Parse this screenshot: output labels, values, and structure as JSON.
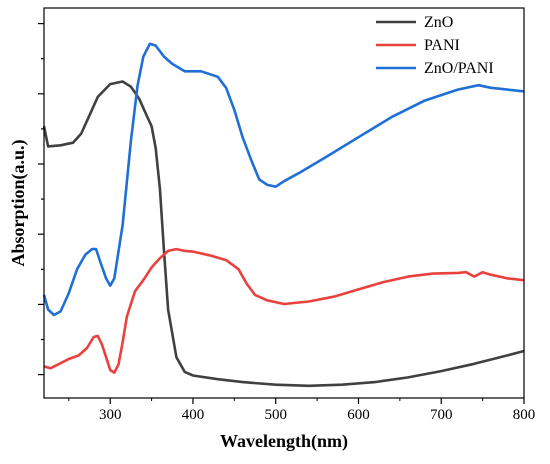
{
  "chart_data": {
    "type": "line",
    "title": "",
    "xlabel": "Wavelength(nm)",
    "ylabel": "Absorption(a.u.)",
    "xlim": [
      220,
      800
    ],
    "x_ticks": [
      300,
      400,
      500,
      600,
      700,
      800
    ],
    "y_ticks_labeled": false,
    "ylim": [
      0,
      1
    ],
    "grid": false,
    "legend_position": "top-right",
    "series": [
      {
        "name": "ZnO",
        "color": "#404040",
        "points": [
          [
            220,
            0.72
          ],
          [
            225,
            0.665
          ],
          [
            240,
            0.668
          ],
          [
            255,
            0.675
          ],
          [
            265,
            0.7
          ],
          [
            275,
            0.75
          ],
          [
            285,
            0.8
          ],
          [
            300,
            0.835
          ],
          [
            315,
            0.842
          ],
          [
            325,
            0.828
          ],
          [
            335,
            0.795
          ],
          [
            345,
            0.745
          ],
          [
            350,
            0.72
          ],
          [
            355,
            0.66
          ],
          [
            360,
            0.55
          ],
          [
            365,
            0.38
          ],
          [
            370,
            0.22
          ],
          [
            380,
            0.09
          ],
          [
            390,
            0.05
          ],
          [
            400,
            0.04
          ],
          [
            430,
            0.03
          ],
          [
            460,
            0.022
          ],
          [
            500,
            0.015
          ],
          [
            540,
            0.012
          ],
          [
            580,
            0.015
          ],
          [
            620,
            0.022
          ],
          [
            660,
            0.035
          ],
          [
            700,
            0.052
          ],
          [
            740,
            0.072
          ],
          [
            780,
            0.095
          ],
          [
            800,
            0.107
          ]
        ]
      },
      {
        "name": "PANI",
        "color": "#e8413e",
        "points": [
          [
            220,
            0.065
          ],
          [
            228,
            0.06
          ],
          [
            235,
            0.068
          ],
          [
            250,
            0.085
          ],
          [
            262,
            0.095
          ],
          [
            272,
            0.115
          ],
          [
            280,
            0.145
          ],
          [
            285,
            0.148
          ],
          [
            290,
            0.125
          ],
          [
            295,
            0.09
          ],
          [
            300,
            0.055
          ],
          [
            305,
            0.048
          ],
          [
            310,
            0.07
          ],
          [
            315,
            0.13
          ],
          [
            320,
            0.2
          ],
          [
            330,
            0.27
          ],
          [
            340,
            0.3
          ],
          [
            350,
            0.335
          ],
          [
            360,
            0.36
          ],
          [
            370,
            0.38
          ],
          [
            380,
            0.385
          ],
          [
            390,
            0.38
          ],
          [
            400,
            0.378
          ],
          [
            420,
            0.368
          ],
          [
            440,
            0.355
          ],
          [
            455,
            0.33
          ],
          [
            465,
            0.29
          ],
          [
            475,
            0.26
          ],
          [
            490,
            0.245
          ],
          [
            510,
            0.235
          ],
          [
            540,
            0.242
          ],
          [
            570,
            0.255
          ],
          [
            600,
            0.275
          ],
          [
            630,
            0.295
          ],
          [
            660,
            0.31
          ],
          [
            690,
            0.318
          ],
          [
            720,
            0.32
          ],
          [
            730,
            0.322
          ],
          [
            740,
            0.31
          ],
          [
            750,
            0.322
          ],
          [
            760,
            0.315
          ],
          [
            780,
            0.305
          ],
          [
            800,
            0.3
          ]
        ]
      },
      {
        "name": "ZnO/PANI",
        "color": "#1f6fd6",
        "points": [
          [
            220,
            0.26
          ],
          [
            225,
            0.22
          ],
          [
            232,
            0.205
          ],
          [
            240,
            0.215
          ],
          [
            250,
            0.265
          ],
          [
            260,
            0.33
          ],
          [
            270,
            0.37
          ],
          [
            278,
            0.385
          ],
          [
            283,
            0.385
          ],
          [
            288,
            0.35
          ],
          [
            295,
            0.305
          ],
          [
            300,
            0.285
          ],
          [
            305,
            0.305
          ],
          [
            315,
            0.45
          ],
          [
            325,
            0.68
          ],
          [
            333,
            0.83
          ],
          [
            340,
            0.91
          ],
          [
            348,
            0.945
          ],
          [
            355,
            0.94
          ],
          [
            365,
            0.91
          ],
          [
            375,
            0.89
          ],
          [
            390,
            0.87
          ],
          [
            410,
            0.87
          ],
          [
            430,
            0.855
          ],
          [
            440,
            0.825
          ],
          [
            450,
            0.765
          ],
          [
            460,
            0.69
          ],
          [
            470,
            0.63
          ],
          [
            480,
            0.575
          ],
          [
            490,
            0.56
          ],
          [
            500,
            0.555
          ],
          [
            510,
            0.57
          ],
          [
            530,
            0.595
          ],
          [
            560,
            0.635
          ],
          [
            600,
            0.69
          ],
          [
            640,
            0.745
          ],
          [
            680,
            0.79
          ],
          [
            720,
            0.82
          ],
          [
            745,
            0.832
          ],
          [
            760,
            0.825
          ],
          [
            780,
            0.82
          ],
          [
            800,
            0.815
          ]
        ]
      }
    ]
  }
}
